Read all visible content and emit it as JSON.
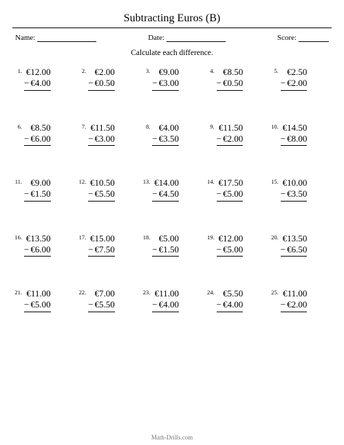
{
  "title": "Subtracting Euros (B)",
  "meta": {
    "name_label": "Name:",
    "date_label": "Date:",
    "score_label": "Score:"
  },
  "instruction": "Calculate each difference.",
  "currency": "€",
  "minus_sign": "−",
  "problems": [
    {
      "n": "1.",
      "a": "€12.00",
      "b": "€4.00"
    },
    {
      "n": "2.",
      "a": "€2.00",
      "b": "€0.50"
    },
    {
      "n": "3.",
      "a": "€9.00",
      "b": "€3.00"
    },
    {
      "n": "4.",
      "a": "€8.50",
      "b": "€0.50"
    },
    {
      "n": "5.",
      "a": "€2.50",
      "b": "€2.00"
    },
    {
      "n": "6.",
      "a": "€8.50",
      "b": "€6.00"
    },
    {
      "n": "7.",
      "a": "€11.50",
      "b": "€3.00"
    },
    {
      "n": "8.",
      "a": "€4.00",
      "b": "€3.50"
    },
    {
      "n": "9.",
      "a": "€11.50",
      "b": "€2.00"
    },
    {
      "n": "10.",
      "a": "€14.50",
      "b": "€8.00"
    },
    {
      "n": "11.",
      "a": "€9.00",
      "b": "€1.50"
    },
    {
      "n": "12.",
      "a": "€10.50",
      "b": "€5.50"
    },
    {
      "n": "13.",
      "a": "€14.00",
      "b": "€4.50"
    },
    {
      "n": "14.",
      "a": "€17.50",
      "b": "€5.00"
    },
    {
      "n": "15.",
      "a": "€10.00",
      "b": "€3.50"
    },
    {
      "n": "16.",
      "a": "€13.50",
      "b": "€6.00"
    },
    {
      "n": "17.",
      "a": "€15.00",
      "b": "€7.50"
    },
    {
      "n": "18.",
      "a": "€5.00",
      "b": "€1.50"
    },
    {
      "n": "19.",
      "a": "€12.00",
      "b": "€5.00"
    },
    {
      "n": "20.",
      "a": "€13.50",
      "b": "€6.50"
    },
    {
      "n": "21.",
      "a": "€11.00",
      "b": "€5.00"
    },
    {
      "n": "22.",
      "a": "€7.00",
      "b": "€5.50"
    },
    {
      "n": "23.",
      "a": "€11.00",
      "b": "€4.00"
    },
    {
      "n": "24.",
      "a": "€5.50",
      "b": "€4.00"
    },
    {
      "n": "25.",
      "a": "€11.00",
      "b": "€2.00"
    }
  ],
  "footer": "Math-Drills.com"
}
